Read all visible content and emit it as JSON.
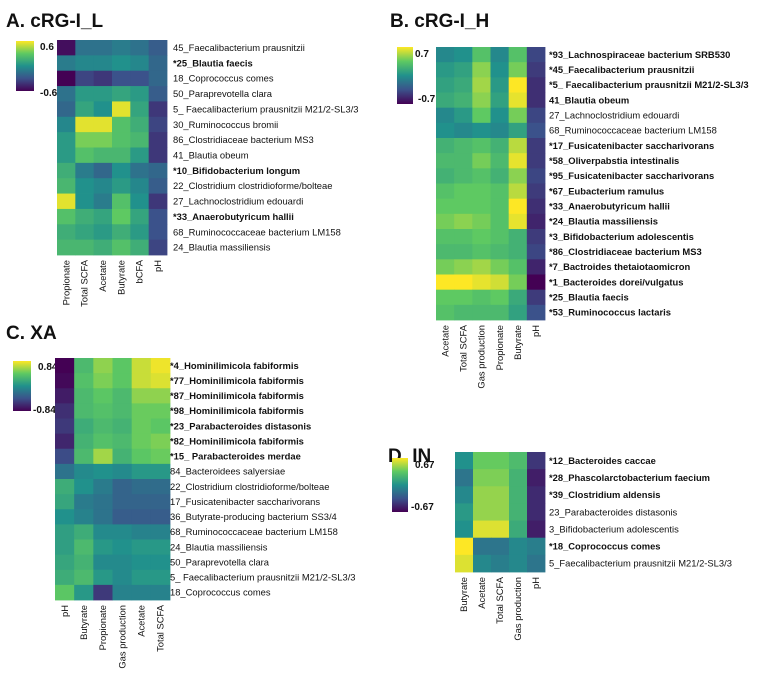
{
  "figure": {
    "colormap": "viridis",
    "colormap_stops": [
      "#440154",
      "#3b528b",
      "#21918c",
      "#5ec962",
      "#fde725"
    ]
  },
  "chart_data": [
    {
      "type": "heatmap",
      "panel": "A",
      "title": "A. cRG-I_L",
      "scale": {
        "max_label": "0.6",
        "min_label": "-0.6",
        "max": 0.6,
        "min": -0.6
      },
      "columns": [
        "Propionate",
        "Total SCFA",
        "Acetate",
        "Butyrate",
        "bCFA",
        "pH"
      ],
      "rows": [
        {
          "label": "45_Faecalibacterium prausnitzii",
          "bold": false
        },
        {
          "label": "*25_Blautia faecis",
          "bold": true
        },
        {
          "label": "18_Coprococcus comes",
          "bold": false
        },
        {
          "label": "50_Paraprevotella clara",
          "bold": false
        },
        {
          "label": "5_ Faecalibacterium prausnitzii M21/2-SL3/3",
          "bold": false
        },
        {
          "label": "30_Ruminococcus bromii",
          "bold": false
        },
        {
          "label": "86_Clostridiaceae bacterium MS3",
          "bold": false
        },
        {
          "label": "41_Blautia obeum",
          "bold": false
        },
        {
          "label": "*10_Bifidobacterium longum",
          "bold": true
        },
        {
          "label": "22_Clostridium clostridioforme/bolteae",
          "bold": false
        },
        {
          "label": "27_Lachnoclostridium edouardi",
          "bold": false
        },
        {
          "label": "*33_Anaerobutyricum hallii",
          "bold": true
        },
        {
          "label": "68_Ruminococcaceae bacterium LM158",
          "bold": false
        },
        {
          "label": "24_Blautia massiliensis",
          "bold": false
        }
      ],
      "values": [
        [
          -0.55,
          -0.15,
          -0.15,
          -0.1,
          -0.15,
          -0.25
        ],
        [
          -0.1,
          -0.05,
          -0.05,
          0.0,
          -0.05,
          -0.2
        ],
        [
          -0.6,
          -0.35,
          -0.4,
          -0.3,
          -0.3,
          -0.2
        ],
        [
          -0.15,
          0.05,
          0.05,
          0.1,
          0.05,
          -0.25
        ],
        [
          -0.2,
          0.1,
          0.0,
          0.55,
          0.1,
          -0.4
        ],
        [
          -0.05,
          0.55,
          0.55,
          0.25,
          0.15,
          -0.35
        ],
        [
          0.05,
          0.35,
          0.35,
          0.25,
          0.2,
          -0.4
        ],
        [
          0.05,
          0.25,
          0.2,
          0.2,
          0.05,
          -0.4
        ],
        [
          0.15,
          -0.1,
          -0.2,
          0.0,
          -0.15,
          -0.2
        ],
        [
          0.2,
          0.0,
          -0.05,
          0.05,
          -0.05,
          -0.25
        ],
        [
          0.55,
          0.0,
          -0.1,
          0.25,
          0.0,
          -0.4
        ],
        [
          0.25,
          0.15,
          0.1,
          0.3,
          0.1,
          -0.3
        ],
        [
          0.15,
          0.1,
          0.05,
          0.15,
          0.05,
          -0.3
        ],
        [
          0.2,
          0.2,
          0.15,
          0.25,
          0.15,
          -0.35
        ]
      ]
    },
    {
      "type": "heatmap",
      "panel": "B",
      "title": "B. cRG-I_H",
      "scale": {
        "max_label": "0.7",
        "min_label": "-0.7",
        "max": 0.7,
        "min": -0.7
      },
      "columns": [
        "Acetate",
        "Total SCFA",
        "Gas production",
        "Propionate",
        "Butyrate",
        "pH"
      ],
      "rows": [
        {
          "label": "*93_Lachnospiraceae bacterium SRB530",
          "bold": true
        },
        {
          "label": "*45_Faecalibacterium prausnitzii",
          "bold": true
        },
        {
          "label": "*5_ Faecalibacterium prausnitzii M21/2-SL3/3",
          "bold": true
        },
        {
          "label": "41_Blautia obeum",
          "bold": true
        },
        {
          "label": "27_Lachnoclostridium edouardi",
          "bold": false
        },
        {
          "label": "68_Ruminococcaceae bacterium LM158",
          "bold": false
        },
        {
          "label": "*17_Fusicatenibacter saccharivorans",
          "bold": true
        },
        {
          "label": "*58_Oliverpabstia intestinalis",
          "bold": true
        },
        {
          "label": "*95_Fusicatenibacter saccharivorans",
          "bold": true
        },
        {
          "label": "*67_Eubacterium ramulus",
          "bold": true
        },
        {
          "label": "*33_Anaerobutyricum hallii",
          "bold": true
        },
        {
          "label": "*24_Blautia massiliensis",
          "bold": true
        },
        {
          "label": "*3_Bifidobacterium adolescentis",
          "bold": true
        },
        {
          "label": "*86_Clostridiaceae bacterium MS3",
          "bold": true
        },
        {
          "label": "*7_Bactroides thetaiotaomicron",
          "bold": true
        },
        {
          "label": "*1_Bacteroides dorei/vulgatus",
          "bold": true
        },
        {
          "label": "*25_Blautia faecis",
          "bold": true
        },
        {
          "label": "*53_Ruminococcus lactaris",
          "bold": true
        }
      ],
      "values": [
        [
          -0.05,
          0.0,
          0.3,
          -0.05,
          0.3,
          -0.4
        ],
        [
          0.05,
          0.1,
          0.45,
          0.0,
          0.4,
          -0.45
        ],
        [
          0.1,
          0.15,
          0.5,
          0.05,
          0.7,
          -0.5
        ],
        [
          0.15,
          0.2,
          0.45,
          0.1,
          0.65,
          -0.5
        ],
        [
          -0.05,
          0.05,
          0.35,
          0.0,
          0.4,
          -0.4
        ],
        [
          0.0,
          -0.05,
          0.0,
          -0.05,
          0.1,
          -0.35
        ],
        [
          0.2,
          0.25,
          0.3,
          0.2,
          0.55,
          -0.45
        ],
        [
          0.25,
          0.25,
          0.4,
          0.25,
          0.65,
          -0.45
        ],
        [
          0.2,
          0.25,
          0.3,
          0.2,
          0.45,
          -0.4
        ],
        [
          0.3,
          0.35,
          0.35,
          0.3,
          0.55,
          -0.45
        ],
        [
          0.35,
          0.35,
          0.35,
          0.3,
          0.7,
          -0.5
        ],
        [
          0.4,
          0.45,
          0.4,
          0.3,
          0.65,
          -0.55
        ],
        [
          0.3,
          0.3,
          0.35,
          0.3,
          0.2,
          -0.45
        ],
        [
          0.25,
          0.25,
          0.3,
          0.25,
          0.2,
          -0.4
        ],
        [
          0.4,
          0.45,
          0.5,
          0.4,
          0.3,
          -0.55
        ],
        [
          0.7,
          0.7,
          0.65,
          0.6,
          0.4,
          -0.7
        ],
        [
          0.35,
          0.35,
          0.3,
          0.35,
          0.15,
          -0.45
        ],
        [
          0.3,
          0.25,
          0.25,
          0.25,
          0.1,
          -0.35
        ]
      ]
    },
    {
      "type": "heatmap",
      "panel": "C",
      "title": "C. XA",
      "scale": {
        "max_label": "0.84",
        "min_label": "-0.84",
        "max": 0.84,
        "min": -0.84
      },
      "columns": [
        "pH",
        "Butyrate",
        "Propionate",
        "Gas production",
        "Acetate",
        "Total SCFA"
      ],
      "rows": [
        {
          "label": "*4_Hominilimicola fabiformis",
          "bold": true
        },
        {
          "label": "*77_Hominilimicola fabiformis",
          "bold": true
        },
        {
          "label": "*87_Hominilimicola fabiformis",
          "bold": true
        },
        {
          "label": "*98_Hominilimicola fabiformis",
          "bold": true
        },
        {
          "label": "*23_Parabacteroides distasonis",
          "bold": true
        },
        {
          "label": "*82_Hominilimicola fabiformis",
          "bold": true
        },
        {
          "label": "*15_ Parabacteroides merdae",
          "bold": true
        },
        {
          "label": "84_Bacteroidees salyersiae",
          "bold": false
        },
        {
          "label": "22_Clostridium clostridioforme/bolteae",
          "bold": false
        },
        {
          "label": "17_Fusicatenibacter saccharivorans",
          "bold": false
        },
        {
          "label": "36_Butyrate-producing bacterium SS3/4",
          "bold": false
        },
        {
          "label": "68_Ruminococcaceae bacterium LM158",
          "bold": false
        },
        {
          "label": "24_Blautia massiliensis",
          "bold": false
        },
        {
          "label": "50_Paraprevotella clara",
          "bold": false
        },
        {
          "label": "5_ Faecalibacterium prausnitzii M21/2-SL3/3",
          "bold": false
        },
        {
          "label": "18_Coprococcus comes",
          "bold": false
        }
      ],
      "values": [
        [
          -0.84,
          0.3,
          0.55,
          0.4,
          0.7,
          0.8
        ],
        [
          -0.8,
          0.35,
          0.5,
          0.4,
          0.7,
          0.75
        ],
        [
          -0.7,
          0.3,
          0.4,
          0.3,
          0.55,
          0.55
        ],
        [
          -0.6,
          0.3,
          0.35,
          0.3,
          0.45,
          0.45
        ],
        [
          -0.55,
          0.2,
          0.3,
          0.25,
          0.45,
          0.4
        ],
        [
          -0.65,
          0.25,
          0.35,
          0.3,
          0.45,
          0.5
        ],
        [
          -0.45,
          0.3,
          0.6,
          0.25,
          0.4,
          0.45
        ],
        [
          -0.2,
          -0.05,
          0.0,
          -0.05,
          0.05,
          0.05
        ],
        [
          0.2,
          0.0,
          -0.15,
          -0.3,
          -0.25,
          -0.25
        ],
        [
          0.15,
          -0.15,
          -0.2,
          -0.3,
          -0.3,
          -0.3
        ],
        [
          0.0,
          -0.1,
          -0.2,
          -0.35,
          -0.35,
          -0.35
        ],
        [
          0.1,
          0.2,
          -0.05,
          -0.05,
          -0.1,
          -0.1
        ],
        [
          0.1,
          0.3,
          0.05,
          0.0,
          0.05,
          0.05
        ],
        [
          0.15,
          0.25,
          -0.05,
          -0.05,
          0.0,
          0.0
        ],
        [
          0.2,
          0.3,
          0.05,
          -0.05,
          0.05,
          0.05
        ],
        [
          0.4,
          0.05,
          -0.55,
          -0.1,
          -0.1,
          -0.1
        ]
      ]
    },
    {
      "type": "heatmap",
      "panel": "D",
      "title": "D. IN",
      "scale": {
        "max_label": "0.67",
        "min_label": "-0.67",
        "max": 0.67,
        "min": -0.67
      },
      "columns": [
        "Butyrate",
        "Acetate",
        "Total SCFA",
        "Gas production",
        "pH"
      ],
      "rows": [
        {
          "label": "*12_Bacteroides caccae",
          "bold": true
        },
        {
          "label": "*28_Phascolarctobacterium faecium",
          "bold": true
        },
        {
          "label": "*39_Clostridium aldensis",
          "bold": true
        },
        {
          "label": "23_Parabacteroides distasonis",
          "bold": false
        },
        {
          "label": "3_Bifidobacterium adolescentis",
          "bold": false
        },
        {
          "label": "*18_Coprococcus comes",
          "bold": true
        },
        {
          "label": "5_Faecalibacterium prausnitzii M21/2-SL3/3",
          "bold": false
        }
      ],
      "values": [
        [
          0.0,
          0.35,
          0.35,
          0.25,
          -0.45
        ],
        [
          -0.15,
          0.4,
          0.4,
          0.2,
          -0.55
        ],
        [
          -0.05,
          0.45,
          0.45,
          0.2,
          -0.5
        ],
        [
          0.05,
          0.45,
          0.45,
          0.2,
          -0.5
        ],
        [
          0.0,
          0.6,
          0.6,
          0.15,
          -0.55
        ],
        [
          0.67,
          -0.15,
          -0.15,
          -0.05,
          -0.1
        ],
        [
          0.6,
          -0.05,
          -0.1,
          -0.05,
          -0.15
        ]
      ]
    }
  ]
}
